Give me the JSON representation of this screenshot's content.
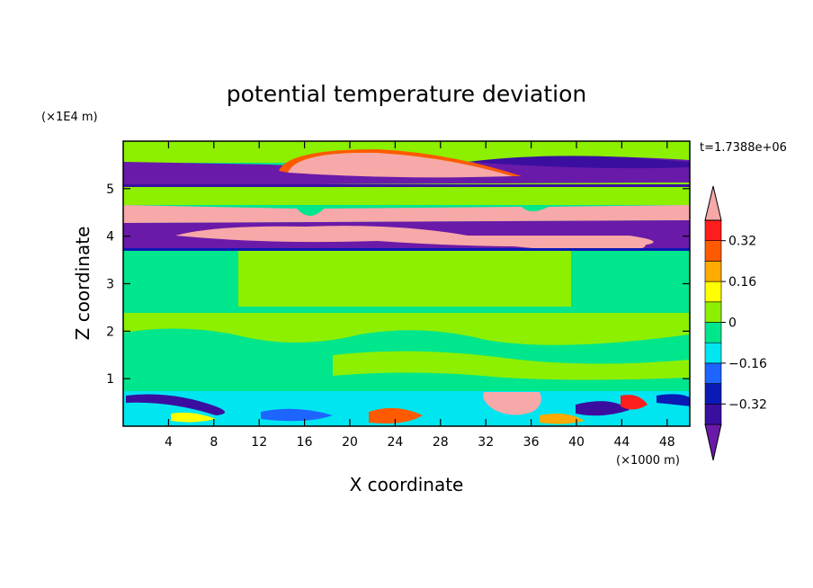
{
  "chart_data": {
    "type": "heatmap",
    "title": "potential temperature deviation",
    "xlabel": "X coordinate",
    "ylabel": "Z coordinate",
    "x_unit": "(×1000 m)",
    "y_unit": "(×1E4 m)",
    "time_label": "t=1.7388e+06",
    "xlim": [
      0,
      50
    ],
    "ylim": [
      0,
      6
    ],
    "x_ticks": [
      4,
      8,
      12,
      16,
      20,
      24,
      28,
      32,
      36,
      40,
      44,
      48
    ],
    "y_ticks": [
      1,
      2,
      3,
      4,
      5
    ],
    "colorbar": {
      "levels": [
        -0.4,
        -0.32,
        -0.24,
        -0.16,
        -0.08,
        0,
        0.08,
        0.16,
        0.24,
        0.32,
        0.4
      ],
      "tick_labels": [
        "0.32",
        "0.16",
        "0",
        "−0.16",
        "−0.32"
      ],
      "tick_values": [
        0.32,
        0.16,
        0,
        -0.16,
        -0.32
      ],
      "colors": [
        "#6a1aa8",
        "#3a0fa0",
        "#0a1ab4",
        "#1e64ff",
        "#00e6f0",
        "#00e68c",
        "#8cf000",
        "#ffff00",
        "#ffaa00",
        "#ff5a00",
        "#ff1e1e",
        "#f7a8a8"
      ],
      "extend": "both"
    },
    "bands": [
      {
        "name": "",
        "z_range": [
          5.55,
          6.0
        ],
        "value": 0.04
      },
      {
        "name": "",
        "z_range": [
          5.2,
          5.55
        ],
        "value": -0.42
      },
      {
        "name": "",
        "z_range": [
          4.5,
          4.85
        ],
        "value": 0.45
      },
      {
        "name": "",
        "z_range": [
          3.75,
          4.5
        ],
        "value": -0.42
      },
      {
        "name": "",
        "z_range": [
          2.5,
          3.75
        ],
        "value": 0.04
      },
      {
        "name": "",
        "z_range": [
          0.7,
          2.5
        ],
        "value": 0.0
      },
      {
        "name": "",
        "z_range": [
          0.0,
          0.7
        ],
        "value": -0.08
      }
    ]
  }
}
